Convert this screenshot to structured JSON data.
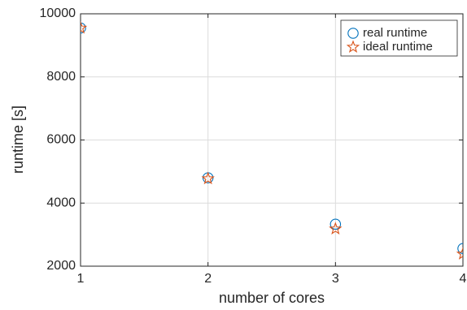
{
  "chart_data": {
    "type": "scatter",
    "xlabel": "number of cores",
    "ylabel": "runtime [s]",
    "xlim": [
      1,
      4
    ],
    "ylim": [
      2000,
      10000
    ],
    "x_ticks": [
      "1",
      "2",
      "3",
      "4"
    ],
    "y_ticks": [
      "2000",
      "4000",
      "6000",
      "8000",
      "10000"
    ],
    "grid": true,
    "legend_position": "top-right",
    "series": [
      {
        "name": "real runtime",
        "marker": "circle",
        "color": "#0072BD",
        "points": [
          {
            "x": 1,
            "y": 9550
          },
          {
            "x": 2,
            "y": 4800
          },
          {
            "x": 3,
            "y": 3330
          },
          {
            "x": 4,
            "y": 2560
          }
        ]
      },
      {
        "name": "ideal runtime",
        "marker": "star",
        "color": "#D95319",
        "points": [
          {
            "x": 1,
            "y": 9550
          },
          {
            "x": 2,
            "y": 4775
          },
          {
            "x": 3,
            "y": 3183
          },
          {
            "x": 4,
            "y": 2388
          }
        ]
      }
    ]
  }
}
